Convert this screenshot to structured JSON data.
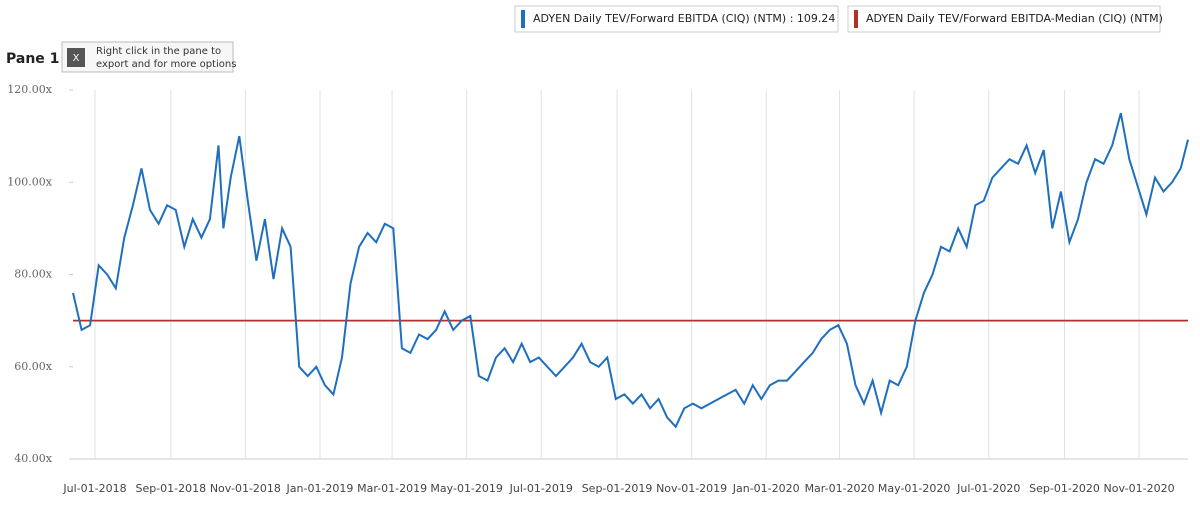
{
  "chart_data": {
    "type": "line",
    "pane_label": "Pane 1",
    "hint": [
      "Right click in the pane to",
      "export and for more options"
    ],
    "xlim": [
      "2018-06-13",
      "2020-12-11"
    ],
    "xticks": [
      {
        "value": "2018-07-01",
        "label": "Jul-01-2018"
      },
      {
        "value": "2018-09-01",
        "label": "Sep-01-2018"
      },
      {
        "value": "2018-11-01",
        "label": "Nov-01-2018"
      },
      {
        "value": "2019-01-01",
        "label": "Jan-01-2019"
      },
      {
        "value": "2019-03-01",
        "label": "Mar-01-2019"
      },
      {
        "value": "2019-05-01",
        "label": "May-01-2019"
      },
      {
        "value": "2019-07-01",
        "label": "Jul-01-2019"
      },
      {
        "value": "2019-09-01",
        "label": "Sep-01-2019"
      },
      {
        "value": "2019-11-01",
        "label": "Nov-01-2019"
      },
      {
        "value": "2020-01-01",
        "label": "Jan-01-2020"
      },
      {
        "value": "2020-03-01",
        "label": "Mar-01-2020"
      },
      {
        "value": "2020-05-01",
        "label": "May-01-2020"
      },
      {
        "value": "2020-07-01",
        "label": "Jul-01-2020"
      },
      {
        "value": "2020-09-01",
        "label": "Sep-01-2020"
      },
      {
        "value": "2020-11-01",
        "label": "Nov-01-2020"
      }
    ],
    "ylim": [
      40,
      120
    ],
    "yticks": [
      {
        "value": 40,
        "label": "40.00x"
      },
      {
        "value": 60,
        "label": "60.00x"
      },
      {
        "value": 80,
        "label": "80.00x"
      },
      {
        "value": 100,
        "label": "100.00x"
      },
      {
        "value": 120,
        "label": "120.00x"
      }
    ],
    "grid": true,
    "series": [
      {
        "name": "ADYEN Daily TEV/Forward EBITDA (CIQ) (NTM) : 109.24",
        "color": "#1f6fbf",
        "x": [
          "2018-06-13",
          "2018-06-20",
          "2018-06-27",
          "2018-07-04",
          "2018-07-11",
          "2018-07-18",
          "2018-07-25",
          "2018-08-01",
          "2018-08-08",
          "2018-08-15",
          "2018-08-22",
          "2018-08-29",
          "2018-09-05",
          "2018-09-12",
          "2018-09-19",
          "2018-09-26",
          "2018-10-03",
          "2018-10-10",
          "2018-10-14",
          "2018-10-20",
          "2018-10-27",
          "2018-11-03",
          "2018-11-10",
          "2018-11-17",
          "2018-11-24",
          "2018-12-01",
          "2018-12-08",
          "2018-12-15",
          "2018-12-22",
          "2018-12-29",
          "2019-01-05",
          "2019-01-12",
          "2019-01-19",
          "2019-01-26",
          "2019-02-02",
          "2019-02-09",
          "2019-02-16",
          "2019-02-23",
          "2019-03-02",
          "2019-03-09",
          "2019-03-16",
          "2019-03-23",
          "2019-03-30",
          "2019-04-06",
          "2019-04-13",
          "2019-04-20",
          "2019-04-27",
          "2019-05-04",
          "2019-05-11",
          "2019-05-18",
          "2019-05-25",
          "2019-06-01",
          "2019-06-08",
          "2019-06-15",
          "2019-06-22",
          "2019-06-29",
          "2019-07-06",
          "2019-07-13",
          "2019-07-20",
          "2019-07-27",
          "2019-08-03",
          "2019-08-10",
          "2019-08-17",
          "2019-08-24",
          "2019-08-31",
          "2019-09-07",
          "2019-09-14",
          "2019-09-21",
          "2019-09-28",
          "2019-10-05",
          "2019-10-12",
          "2019-10-19",
          "2019-10-26",
          "2019-11-02",
          "2019-11-09",
          "2019-11-16",
          "2019-11-23",
          "2019-11-30",
          "2019-12-07",
          "2019-12-14",
          "2019-12-21",
          "2019-12-28",
          "2020-01-04",
          "2020-01-11",
          "2020-01-18",
          "2020-01-25",
          "2020-02-01",
          "2020-02-08",
          "2020-02-15",
          "2020-02-22",
          "2020-02-29",
          "2020-03-07",
          "2020-03-14",
          "2020-03-21",
          "2020-03-28",
          "2020-04-04",
          "2020-04-11",
          "2020-04-18",
          "2020-04-25",
          "2020-05-02",
          "2020-05-09",
          "2020-05-16",
          "2020-05-23",
          "2020-05-30",
          "2020-06-06",
          "2020-06-13",
          "2020-06-20",
          "2020-06-27",
          "2020-07-04",
          "2020-07-11",
          "2020-07-18",
          "2020-07-25",
          "2020-08-01",
          "2020-08-08",
          "2020-08-15",
          "2020-08-22",
          "2020-08-29",
          "2020-09-05",
          "2020-09-12",
          "2020-09-19",
          "2020-09-26",
          "2020-10-03",
          "2020-10-10",
          "2020-10-17",
          "2020-10-24",
          "2020-10-31",
          "2020-11-07",
          "2020-11-14",
          "2020-11-21",
          "2020-11-28",
          "2020-12-05",
          "2020-12-11"
        ],
        "values": [
          76,
          68,
          69,
          82,
          80,
          77,
          88,
          95,
          103,
          94,
          91,
          95,
          94,
          86,
          92,
          88,
          92,
          108,
          90,
          101,
          110,
          96,
          83,
          92,
          79,
          90,
          86,
          60,
          58,
          60,
          56,
          54,
          62,
          78,
          86,
          89,
          87,
          91,
          90,
          64,
          63,
          67,
          66,
          68,
          72,
          68,
          70,
          71,
          58,
          57,
          62,
          64,
          61,
          65,
          61,
          62,
          60,
          58,
          60,
          62,
          65,
          61,
          60,
          62,
          53,
          54,
          52,
          54,
          51,
          53,
          49,
          47,
          51,
          52,
          51,
          52,
          53,
          54,
          55,
          52,
          56,
          53,
          56,
          57,
          57,
          59,
          61,
          63,
          66,
          68,
          69,
          65,
          56,
          52,
          57,
          50,
          57,
          56,
          60,
          70,
          76,
          80,
          86,
          85,
          90,
          86,
          95,
          96,
          101,
          103,
          105,
          104,
          108,
          102,
          107,
          90,
          98,
          87,
          92,
          100,
          105,
          104,
          108,
          115,
          105,
          99,
          93,
          101,
          98,
          100,
          103,
          109.24
        ]
      },
      {
        "name": "ADYEN Daily TEV/Forward EBITDA-Median (CIQ) (NTM)",
        "color": "#b0302c",
        "x": [
          "2018-06-13",
          "2020-12-11"
        ],
        "values": [
          70,
          70
        ]
      }
    ]
  }
}
